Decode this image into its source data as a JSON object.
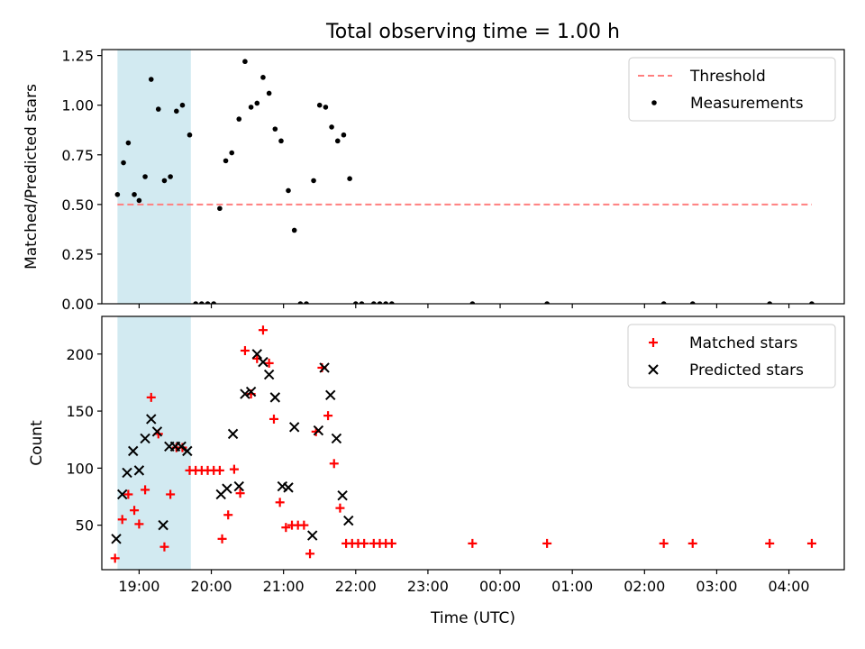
{
  "figure": {
    "title": "Total observing time = 1.00 h",
    "xlabel": "Time (UTC)"
  },
  "colors": {
    "threshold": "#ff7f7f",
    "measurement": "#000000",
    "matched": "#ff0000",
    "predicted": "#000000",
    "shade": "#add8e6"
  },
  "chart_data": [
    {
      "type": "scatter",
      "ylabel": "Matched/Predicted stars",
      "xlim": [
        "18:29",
        "04:46"
      ],
      "ylim": [
        0,
        1.28
      ],
      "xticks": [
        "19:00",
        "20:00",
        "21:00",
        "22:00",
        "23:00",
        "00:00",
        "01:00",
        "02:00",
        "03:00",
        "04:00"
      ],
      "yticks": [
        "0.00",
        "0.25",
        "0.50",
        "0.75",
        "1.00",
        "1.25"
      ],
      "shaded_interval": [
        "18:42",
        "19:43"
      ],
      "legend": {
        "placement": "top-right",
        "entries": [
          "Threshold",
          "Measurements"
        ]
      },
      "threshold": {
        "name": "Threshold",
        "value": 0.5,
        "x_start": "18:42",
        "x_end": "04:19"
      },
      "series": [
        {
          "name": "Measurements",
          "points": [
            [
              "18:42",
              0.55
            ],
            [
              "18:47",
              0.71
            ],
            [
              "18:51",
              0.81
            ],
            [
              "18:56",
              0.55
            ],
            [
              "19:00",
              0.52
            ],
            [
              "19:05",
              0.64
            ],
            [
              "19:10",
              1.13
            ],
            [
              "19:16",
              0.98
            ],
            [
              "19:21",
              0.62
            ],
            [
              "19:26",
              0.64
            ],
            [
              "19:31",
              0.97
            ],
            [
              "19:36",
              1.0
            ],
            [
              "19:42",
              0.85
            ],
            [
              "19:47",
              0.0
            ],
            [
              "19:52",
              0.0
            ],
            [
              "19:57",
              0.0
            ],
            [
              "20:02",
              0.0
            ],
            [
              "20:07",
              0.48
            ],
            [
              "20:12",
              0.72
            ],
            [
              "20:17",
              0.76
            ],
            [
              "20:23",
              0.93
            ],
            [
              "20:28",
              1.22
            ],
            [
              "20:33",
              0.99
            ],
            [
              "20:38",
              1.01
            ],
            [
              "20:43",
              1.14
            ],
            [
              "20:48",
              1.06
            ],
            [
              "20:53",
              0.88
            ],
            [
              "20:58",
              0.82
            ],
            [
              "21:04",
              0.57
            ],
            [
              "21:09",
              0.37
            ],
            [
              "21:14",
              0.0
            ],
            [
              "21:19",
              0.0
            ],
            [
              "21:25",
              0.62
            ],
            [
              "21:30",
              1.0
            ],
            [
              "21:35",
              0.99
            ],
            [
              "21:40",
              0.89
            ],
            [
              "21:45",
              0.82
            ],
            [
              "21:50",
              0.85
            ],
            [
              "21:55",
              0.63
            ],
            [
              "22:00",
              0.0
            ],
            [
              "22:05",
              0.0
            ],
            [
              "22:15",
              0.0
            ],
            [
              "22:20",
              0.0
            ],
            [
              "22:25",
              0.0
            ],
            [
              "22:30",
              0.0
            ],
            [
              "23:37",
              0.0
            ],
            [
              "00:39",
              0.0
            ],
            [
              "02:16",
              0.0
            ],
            [
              "02:40",
              0.0
            ],
            [
              "03:44",
              0.0
            ],
            [
              "04:19",
              0.0
            ]
          ]
        }
      ]
    },
    {
      "type": "scatter",
      "ylabel": "Count",
      "xlim": [
        "18:29",
        "04:46"
      ],
      "ylim": [
        11,
        233
      ],
      "xticks": [
        "19:00",
        "20:00",
        "21:00",
        "22:00",
        "23:00",
        "00:00",
        "01:00",
        "02:00",
        "03:00",
        "04:00"
      ],
      "yticks": [
        "50",
        "100",
        "150",
        "200"
      ],
      "shaded_interval": [
        "18:42",
        "19:43"
      ],
      "legend": {
        "placement": "top-right",
        "entries": [
          "Matched stars",
          "Predicted stars"
        ]
      },
      "series": [
        {
          "name": "Matched stars",
          "marker": "plus",
          "points": [
            [
              "18:40",
              21
            ],
            [
              "18:46",
              55
            ],
            [
              "18:51",
              77
            ],
            [
              "18:56",
              63
            ],
            [
              "19:00",
              51
            ],
            [
              "19:05",
              81
            ],
            [
              "19:10",
              162
            ],
            [
              "19:16",
              130
            ],
            [
              "19:21",
              31
            ],
            [
              "19:26",
              77
            ],
            [
              "19:31",
              118
            ],
            [
              "19:36",
              118
            ],
            [
              "19:42",
              98
            ],
            [
              "19:47",
              98
            ],
            [
              "19:52",
              98
            ],
            [
              "19:57",
              98
            ],
            [
              "20:02",
              98
            ],
            [
              "20:07",
              98
            ],
            [
              "20:09",
              38
            ],
            [
              "20:14",
              59
            ],
            [
              "20:19",
              99
            ],
            [
              "20:24",
              78
            ],
            [
              "20:28",
              203
            ],
            [
              "20:33",
              165
            ],
            [
              "20:38",
              196
            ],
            [
              "20:43",
              221
            ],
            [
              "20:48",
              192
            ],
            [
              "20:52",
              143
            ],
            [
              "20:57",
              70
            ],
            [
              "21:02",
              48
            ],
            [
              "21:07",
              50
            ],
            [
              "21:12",
              50
            ],
            [
              "21:17",
              50
            ],
            [
              "21:22",
              25
            ],
            [
              "21:27",
              132
            ],
            [
              "21:32",
              188
            ],
            [
              "21:37",
              146
            ],
            [
              "21:42",
              104
            ],
            [
              "21:47",
              65
            ],
            [
              "21:52",
              34
            ],
            [
              "21:57",
              34
            ],
            [
              "22:02",
              34
            ],
            [
              "22:07",
              34
            ],
            [
              "22:15",
              34
            ],
            [
              "22:20",
              34
            ],
            [
              "22:25",
              34
            ],
            [
              "22:30",
              34
            ],
            [
              "23:37",
              34
            ],
            [
              "00:39",
              34
            ],
            [
              "02:16",
              34
            ],
            [
              "02:40",
              34
            ],
            [
              "03:44",
              34
            ],
            [
              "04:19",
              34
            ]
          ]
        },
        {
          "name": "Predicted stars",
          "marker": "x",
          "points": [
            [
              "18:41",
              38
            ],
            [
              "18:46",
              77
            ],
            [
              "18:50",
              96
            ],
            [
              "18:55",
              115
            ],
            [
              "19:00",
              98
            ],
            [
              "19:05",
              126
            ],
            [
              "19:10",
              143
            ],
            [
              "19:15",
              132
            ],
            [
              "19:20",
              50
            ],
            [
              "19:25",
              119
            ],
            [
              "19:30",
              119
            ],
            [
              "19:35",
              119
            ],
            [
              "19:40",
              115
            ],
            [
              "20:08",
              77
            ],
            [
              "20:13",
              82
            ],
            [
              "20:18",
              130
            ],
            [
              "20:23",
              84
            ],
            [
              "20:28",
              165
            ],
            [
              "20:33",
              167
            ],
            [
              "20:38",
              200
            ],
            [
              "20:43",
              193
            ],
            [
              "20:48",
              182
            ],
            [
              "20:53",
              162
            ],
            [
              "20:59",
              84
            ],
            [
              "21:04",
              83
            ],
            [
              "21:09",
              136
            ],
            [
              "21:24",
              41
            ],
            [
              "21:29",
              133
            ],
            [
              "21:34",
              188
            ],
            [
              "21:39",
              164
            ],
            [
              "21:44",
              126
            ],
            [
              "21:49",
              76
            ],
            [
              "21:54",
              54
            ]
          ]
        }
      ]
    }
  ]
}
